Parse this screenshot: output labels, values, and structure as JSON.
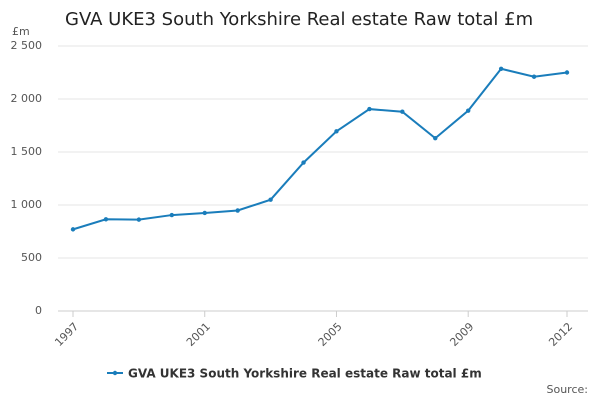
{
  "chart_data": {
    "type": "line",
    "title": "GVA UKE3 South Yorkshire Real estate Raw total £m",
    "y_unit": "£m",
    "source": "Source:",
    "x": [
      1997,
      1998,
      1999,
      2000,
      2001,
      2002,
      2003,
      2004,
      2005,
      2006,
      2007,
      2008,
      2009,
      2010,
      2011,
      2012
    ],
    "series": [
      {
        "name": "GVA UKE3 South Yorkshire Real estate Raw total £m",
        "color": "#1a7dbb",
        "values": [
          770,
          865,
          862,
          905,
          925,
          948,
          1050,
          1400,
          1695,
          1905,
          1880,
          1630,
          1890,
          2285,
          2210,
          2250
        ]
      }
    ],
    "xlim": [
      1997,
      2012
    ],
    "xticks": [
      1997,
      2001,
      2005,
      2009,
      2012
    ],
    "ylim": [
      0,
      2500
    ],
    "yticks": [
      0,
      500,
      {
        "value": 1000,
        "label": "1 000"
      },
      {
        "value": 1500,
        "label": "1 500"
      },
      {
        "value": 2000,
        "label": "2 000"
      },
      {
        "value": 2500,
        "label": "2 500"
      }
    ],
    "grid": true
  }
}
